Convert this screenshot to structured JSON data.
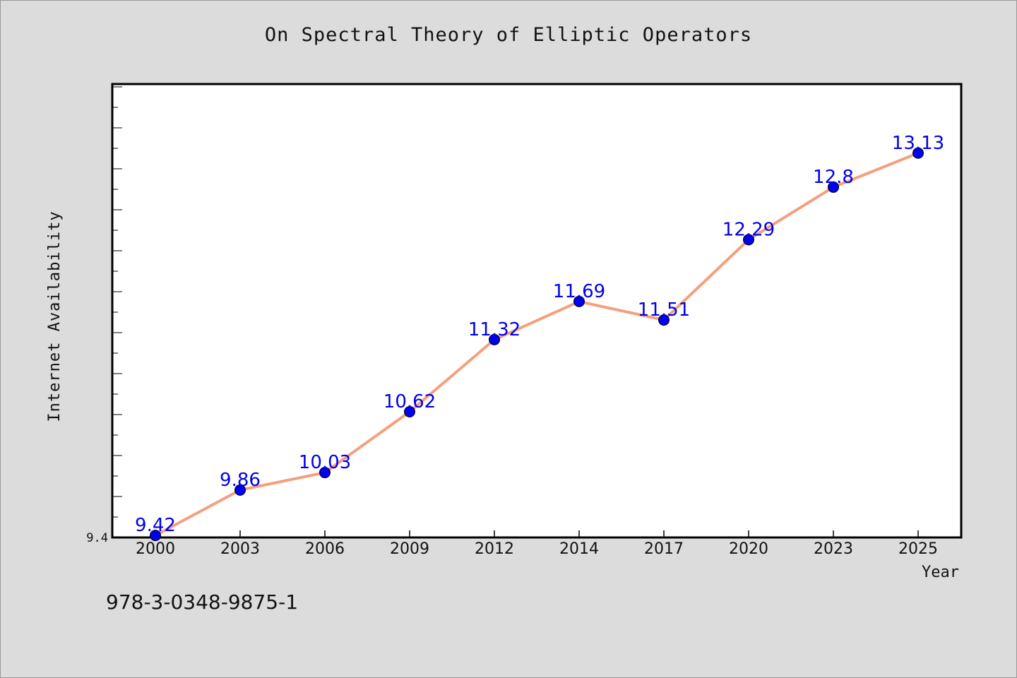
{
  "chart_data": {
    "type": "line",
    "title": "On Spectral Theory of Elliptic Operators",
    "xlabel": "Year",
    "ylabel": "Internet Availability",
    "categories": [
      "2000",
      "2003",
      "2006",
      "2009",
      "2012",
      "2014",
      "2017",
      "2020",
      "2023",
      "2025"
    ],
    "series": [
      {
        "values": [
          9.42,
          9.86,
          10.03,
          10.62,
          11.32,
          11.69,
          11.51,
          12.29,
          12.8,
          13.13
        ],
        "value_labels": [
          "9.42",
          "9.86",
          "10.03",
          "10.62",
          "11.32",
          "11.69",
          "11.51",
          "12.29",
          "12.8",
          "13.13"
        ]
      }
    ],
    "y_tick_labels": [
      "9.4"
    ],
    "ylim": [
      9.4,
      13.8
    ],
    "grid": false,
    "colors": {
      "line": "#f4a07e",
      "marker": "#0000ee",
      "label": "#0000ee",
      "background": "#dcdcdc",
      "plot_background": "#ffffff"
    }
  },
  "footer": {
    "isbn": "978-3-0348-9875-1"
  }
}
